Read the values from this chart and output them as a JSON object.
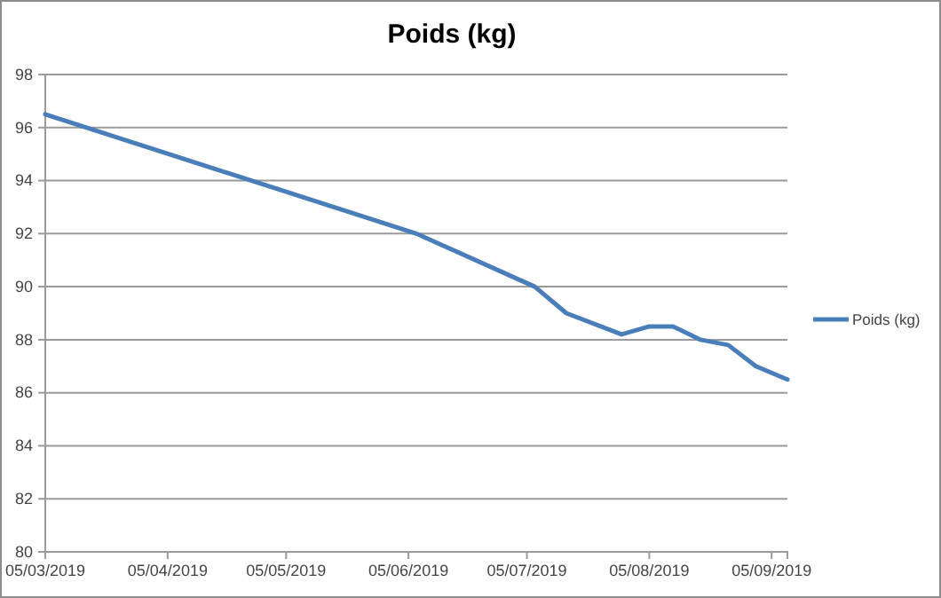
{
  "chart_data": {
    "type": "line",
    "title": "Poids (kg)",
    "x": [
      "2019-03-05",
      "2019-06-07",
      "2019-07-07",
      "2019-07-15",
      "2019-07-29",
      "2019-08-05",
      "2019-08-11",
      "2019-08-18",
      "2019-08-25",
      "2019-09-01",
      "2019-09-09"
    ],
    "series": [
      {
        "name": "Poids (kg)",
        "color": "#4a7ebb",
        "values": [
          96.5,
          92,
          90,
          89,
          88.2,
          88.5,
          88.5,
          88,
          87.8,
          87,
          86.5
        ]
      }
    ],
    "xlim": [
      "2019-03-05",
      "2019-09-09"
    ],
    "xticks": [
      {
        "value": "2019-03-05",
        "label": "05/03/2019"
      },
      {
        "value": "2019-04-05",
        "label": "05/04/2019"
      },
      {
        "value": "2019-05-05",
        "label": "05/05/2019"
      },
      {
        "value": "2019-06-05",
        "label": "05/06/2019"
      },
      {
        "value": "2019-07-05",
        "label": "05/07/2019"
      },
      {
        "value": "2019-08-05",
        "label": "05/08/2019"
      },
      {
        "value": "2019-09-05",
        "label": "05/09/2019"
      }
    ],
    "ylim": [
      80,
      98
    ],
    "yticks": [
      80,
      82,
      84,
      86,
      88,
      90,
      92,
      94,
      96,
      98
    ],
    "grid": "y",
    "legend": "right",
    "marker": "none",
    "line_style": "solid"
  }
}
